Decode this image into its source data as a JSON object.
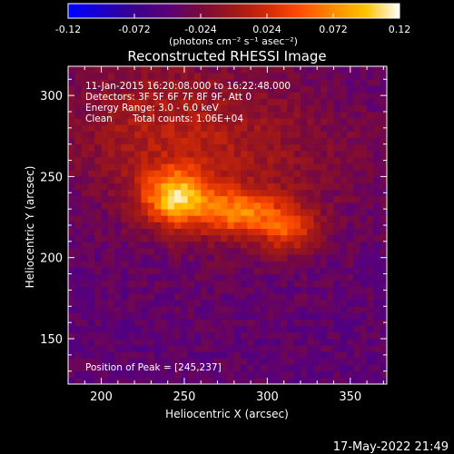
{
  "colorbar": {
    "tick_labels": [
      "-0.12",
      "-0.072",
      "-0.024",
      "0.024",
      "0.072",
      "0.12"
    ],
    "tick_values": [
      -0.12,
      -0.072,
      -0.024,
      0.024,
      0.072,
      0.12
    ],
    "range": [
      -0.12,
      0.12
    ],
    "unit_label": "(photons cm⁻² s⁻¹ asec⁻²)",
    "colors": [
      "#0000ff",
      "#1a00c8",
      "#3a008f",
      "#5a007a",
      "#7a0a3a",
      "#a01818",
      "#d22a06",
      "#ff4e00",
      "#ff8a00",
      "#ffc400",
      "#ffffff"
    ]
  },
  "chart_data": {
    "type": "heatmap",
    "title": "Reconstructed RHESSI Image",
    "xlabel": "Heliocentric X (arcsec)",
    "ylabel": "Heliocentric Y (arcsec)",
    "xlim": [
      180,
      372
    ],
    "ylim": [
      122,
      318
    ],
    "xticks": [
      200,
      250,
      300,
      350
    ],
    "yticks": [
      150,
      200,
      250,
      300
    ],
    "grid": false,
    "annotations": {
      "time_range": "11-Jan-2015 16:20:08.000 to 16:22:48.000",
      "detectors": "Detectors: 3F 5F 6F 7F 8F 9F, Att 0",
      "energy": "Energy Range: 3.0 - 6.0 keV",
      "method": "Clean",
      "total_counts": "Total counts: 1.06E+04",
      "peak": "Position of Peak = [245,237]"
    },
    "peak_position": [
      245,
      237
    ],
    "sources": [
      {
        "x": 245,
        "y": 237,
        "sx": 14,
        "sy": 12,
        "amp": 0.12
      },
      {
        "x": 283,
        "y": 228,
        "sx": 16,
        "sy": 10,
        "amp": 0.085
      },
      {
        "x": 313,
        "y": 218,
        "sx": 12,
        "sy": 10,
        "amp": 0.07
      },
      {
        "x": 280,
        "y": 262,
        "sx": 55,
        "sy": 40,
        "amp": 0.04
      },
      {
        "x": 225,
        "y": 285,
        "sx": 35,
        "sy": 28,
        "amp": 0.03
      }
    ],
    "background": -0.045
  },
  "footer": {
    "timestamp": "17-May-2022 21:49"
  }
}
